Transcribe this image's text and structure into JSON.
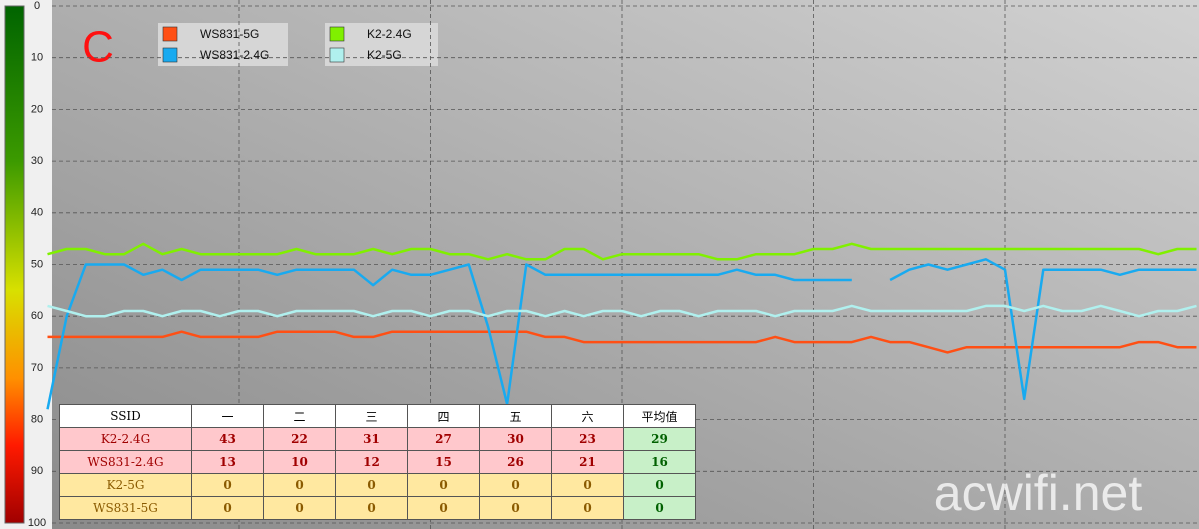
{
  "chart_data": {
    "type": "line",
    "annotation": "C",
    "watermark": "acwifi.net",
    "x": [
      0,
      1,
      2,
      3,
      4,
      5,
      6,
      7,
      8,
      9,
      10,
      11,
      12,
      13,
      14,
      15,
      16,
      17,
      18,
      19,
      20,
      21,
      22,
      23,
      24,
      25,
      26,
      27,
      28,
      29,
      30,
      31,
      32,
      33,
      34,
      35,
      36,
      37,
      38,
      39,
      40,
      41,
      42,
      43,
      44,
      45,
      46,
      47,
      48,
      49,
      50,
      51,
      52,
      53,
      54,
      55,
      56,
      57,
      58,
      59,
      60
    ],
    "xlim": [
      0,
      60
    ],
    "xticks": [
      10,
      20,
      30,
      40,
      50
    ],
    "ylim": [
      0,
      100
    ],
    "yticks": [
      0,
      10,
      20,
      30,
      40,
      50,
      60,
      70,
      80,
      90,
      100
    ],
    "y_inverted": true,
    "grid": true,
    "series": [
      {
        "name": "WS831-5G",
        "color": "#ff4f14",
        "values": [
          64,
          64,
          64,
          64,
          64,
          64,
          64,
          63,
          64,
          64,
          64,
          64,
          63,
          63,
          63,
          63,
          64,
          64,
          63,
          63,
          63,
          63,
          63,
          63,
          63,
          63,
          64,
          64,
          65,
          65,
          65,
          65,
          65,
          65,
          65,
          65,
          65,
          65,
          64,
          65,
          65,
          65,
          65,
          64,
          65,
          65,
          66,
          67,
          66,
          66,
          66,
          66,
          66,
          66,
          66,
          66,
          66,
          65,
          65,
          66,
          66
        ]
      },
      {
        "name": "WS831-2.4G",
        "color": "#18aaf0",
        "values": [
          78,
          60,
          50,
          50,
          50,
          52,
          51,
          53,
          51,
          51,
          51,
          51,
          52,
          51,
          51,
          51,
          51,
          54,
          51,
          52,
          52,
          51,
          50,
          62,
          77,
          50,
          52,
          52,
          52,
          52,
          52,
          52,
          52,
          52,
          52,
          52,
          51,
          52,
          52,
          53,
          53,
          53,
          53,
          null,
          53,
          51,
          50,
          51,
          50,
          49,
          51,
          76,
          51,
          51,
          51,
          51,
          52,
          51,
          51,
          51,
          51
        ]
      },
      {
        "name": "K2-2.4G",
        "color": "#80f000",
        "values": [
          48,
          47,
          47,
          48,
          48,
          46,
          48,
          47,
          48,
          48,
          48,
          48,
          48,
          47,
          48,
          48,
          48,
          47,
          48,
          47,
          47,
          48,
          48,
          49,
          48,
          49,
          49,
          47,
          47,
          49,
          48,
          48,
          48,
          48,
          48,
          49,
          49,
          48,
          48,
          48,
          47,
          47,
          46,
          47,
          47,
          47,
          47,
          47,
          47,
          47,
          47,
          47,
          47,
          47,
          47,
          47,
          47,
          47,
          48,
          47,
          47
        ]
      },
      {
        "name": "K2-5G",
        "color": "#b0f0ee",
        "values": [
          58,
          59,
          60,
          60,
          59,
          59,
          60,
          59,
          59,
          60,
          59,
          59,
          60,
          59,
          59,
          59,
          59,
          60,
          59,
          59,
          60,
          59,
          59,
          60,
          59,
          59,
          60,
          59,
          60,
          59,
          59,
          60,
          59,
          59,
          60,
          59,
          59,
          59,
          60,
          59,
          59,
          59,
          58,
          59,
          59,
          59,
          59,
          59,
          59,
          58,
          58,
          59,
          58,
          59,
          59,
          58,
          59,
          60,
          59,
          59,
          58
        ]
      }
    ]
  },
  "table": {
    "header": [
      "SSID",
      "一",
      "二",
      "三",
      "四",
      "五",
      "六",
      "平均值"
    ],
    "rows": [
      [
        "K2-2.4G",
        43,
        22,
        31,
        27,
        30,
        23,
        29
      ],
      [
        "WS831-2.4G",
        13,
        10,
        12,
        15,
        26,
        21,
        16
      ],
      [
        "K2-5G",
        0,
        0,
        0,
        0,
        0,
        0,
        0
      ],
      [
        "WS831-5G",
        0,
        0,
        0,
        0,
        0,
        0,
        0
      ]
    ]
  }
}
